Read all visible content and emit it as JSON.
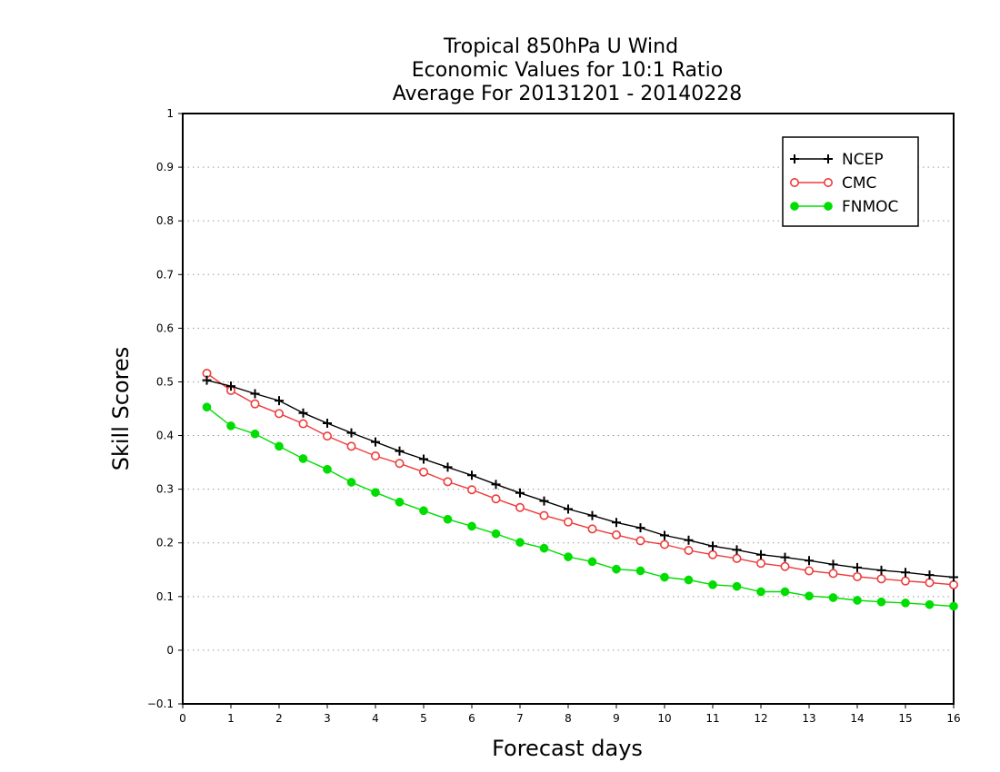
{
  "chart_data": {
    "type": "line",
    "title": [
      "Tropical 850hPa U Wind",
      "Economic Values for 10:1 Ratio",
      "Average For 20131201 - 20140228"
    ],
    "xlabel": "Forecast days",
    "ylabel": "Skill Scores",
    "xlim": [
      0,
      16
    ],
    "ylim": [
      -0.1,
      1
    ],
    "xticks": [
      "0",
      "1",
      "2",
      "3",
      "4",
      "5",
      "6",
      "7",
      "8",
      "9",
      "10",
      "11",
      "12",
      "13",
      "14",
      "15",
      "16"
    ],
    "yticks": [
      {
        "v": -0.1,
        "label": "−0.1"
      },
      {
        "v": 0,
        "label": "0"
      },
      {
        "v": 0.1,
        "label": "0.1"
      },
      {
        "v": 0.2,
        "label": "0.2"
      },
      {
        "v": 0.3,
        "label": "0.3"
      },
      {
        "v": 0.4,
        "label": "0.4"
      },
      {
        "v": 0.5,
        "label": "0.5"
      },
      {
        "v": 0.6,
        "label": "0.6"
      },
      {
        "v": 0.7,
        "label": "0.7"
      },
      {
        "v": 0.8,
        "label": "0.8"
      },
      {
        "v": 0.9,
        "label": "0.9"
      },
      {
        "v": 1,
        "label": "1"
      }
    ],
    "grid": "horizontal dotted",
    "legend_position": "top-right",
    "x": [
      0.5,
      1,
      1.5,
      2,
      2.5,
      3,
      3.5,
      4,
      4.5,
      5,
      5.5,
      6,
      6.5,
      7,
      7.5,
      8,
      8.5,
      9,
      9.5,
      10,
      10.5,
      11,
      11.5,
      12,
      12.5,
      13,
      13.5,
      14,
      14.5,
      15,
      15.5,
      16
    ],
    "series": [
      {
        "name": "NCEP",
        "color": "#000000",
        "marker": "plus",
        "values": [
          0.503,
          0.492,
          0.478,
          0.465,
          0.442,
          0.423,
          0.405,
          0.388,
          0.371,
          0.356,
          0.341,
          0.326,
          0.309,
          0.293,
          0.278,
          0.263,
          0.251,
          0.238,
          0.228,
          0.214,
          0.205,
          0.194,
          0.187,
          0.178,
          0.173,
          0.167,
          0.16,
          0.154,
          0.149,
          0.145,
          0.14,
          0.136
        ]
      },
      {
        "name": "CMC",
        "color": "#ee3b3b",
        "marker": "open-circle",
        "values": [
          0.516,
          0.484,
          0.459,
          0.441,
          0.422,
          0.399,
          0.38,
          0.362,
          0.348,
          0.332,
          0.314,
          0.299,
          0.282,
          0.266,
          0.251,
          0.239,
          0.226,
          0.215,
          0.204,
          0.197,
          0.186,
          0.178,
          0.171,
          0.162,
          0.156,
          0.148,
          0.143,
          0.137,
          0.133,
          0.129,
          0.126,
          0.122
        ]
      },
      {
        "name": "FNMOC",
        "color": "#00dd00",
        "marker": "filled-circle",
        "values": [
          0.453,
          0.418,
          0.403,
          0.38,
          0.357,
          0.337,
          0.313,
          0.294,
          0.276,
          0.26,
          0.244,
          0.231,
          0.217,
          0.201,
          0.19,
          0.174,
          0.165,
          0.151,
          0.148,
          0.136,
          0.131,
          0.122,
          0.119,
          0.109,
          0.109,
          0.101,
          0.098,
          0.093,
          0.09,
          0.088,
          0.085,
          0.082
        ]
      }
    ]
  }
}
